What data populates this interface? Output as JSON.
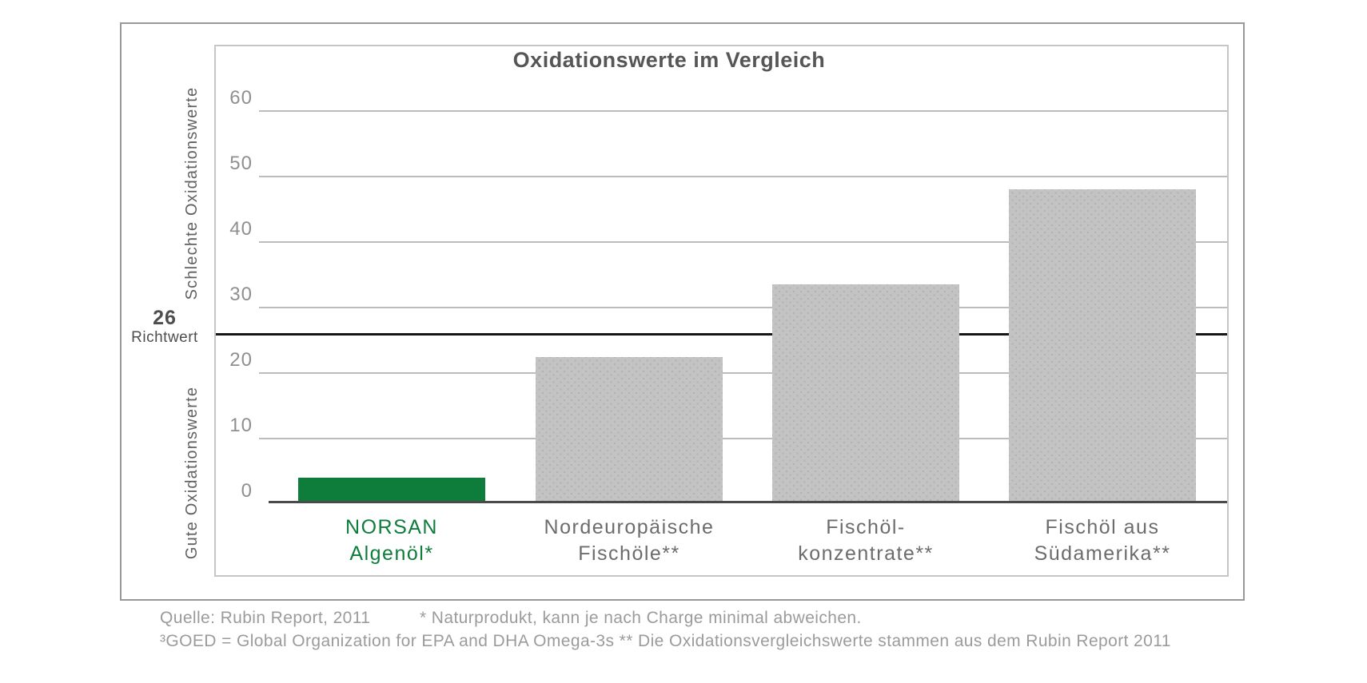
{
  "chart_data": {
    "type": "bar",
    "title": "Oxidationswerte im Vergleich",
    "categories": [
      "NORSAN Algenöl*",
      "Nordeuropäische Fischöle**",
      "Fischöl-konzentrate**",
      "Fischöl aus Südamerika**"
    ],
    "values": [
      4,
      22.5,
      33.5,
      48
    ],
    "xlabel": "",
    "ylabel": "",
    "ylim": [
      0,
      66
    ],
    "yticks": [
      60,
      50,
      40,
      30,
      20,
      10,
      0
    ],
    "grid": true,
    "legend": "none",
    "reference_line": {
      "value": 26,
      "label_number": "26",
      "label_text": "Richtwert",
      "color": "#161616"
    },
    "axis_sections": {
      "top": "Schlechte Oxidationswerte",
      "bottom": "Gute Oxidationswerte"
    },
    "bars": [
      {
        "label_lines": [
          "NORSAN",
          "Algenöl*"
        ],
        "value": 4,
        "bar_color": "#0e7d3c",
        "label_color": "#0e7d3c",
        "dotted": false
      },
      {
        "label_lines": [
          "Nordeuropäische",
          "Fischöle**"
        ],
        "value": 22.5,
        "bar_color": "#c3c3c3",
        "label_color": "#6c6c6c",
        "dotted": true
      },
      {
        "label_lines": [
          "Fischöl-",
          "konzentrate**"
        ],
        "value": 33.5,
        "bar_color": "#c3c3c3",
        "label_color": "#6c6c6c",
        "dotted": true
      },
      {
        "label_lines": [
          "Fischöl aus",
          "Südamerika**"
        ],
        "value": 48,
        "bar_color": "#c3c3c3",
        "label_color": "#6c6c6c",
        "dotted": true
      }
    ]
  },
  "footer": {
    "source": "Quelle: Rubin Report, 2011",
    "note_batch": "* Naturprodukt, kann je nach Charge minimal abweichen.",
    "note_goed": "³GOED = Global Organization for EPA and DHA Omega-3s  ** Die Oxidationsvergleichswerte stammen aus dem Rubin Report 2011"
  },
  "colors": {
    "accent_green": "#0e7d3c",
    "bar_gray": "#c3c3c3",
    "gridline": "#bcbcbc",
    "axis_line": "#4a4a4a",
    "reference_black": "#161616",
    "title_text": "#565659",
    "tick_text": "#8f8f8f",
    "footer_text": "#9b9b9b"
  }
}
